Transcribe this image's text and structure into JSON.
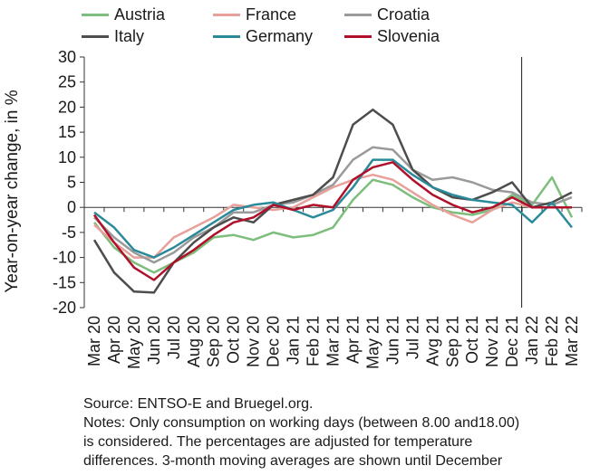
{
  "chart_data": {
    "type": "line",
    "ylabel": "Year-on-year change, in %",
    "ylim": [
      -20,
      30
    ],
    "yticks": [
      -20,
      -15,
      -10,
      -5,
      0,
      5,
      10,
      15,
      20,
      25,
      30
    ],
    "categories": [
      "Mar 20",
      "Apr 20",
      "May 20",
      "Jun 20",
      "Jul 20",
      "Aug 20",
      "Sep 20",
      "Oct 20",
      "Nov 20",
      "Dec 20",
      "Jan 21",
      "Feb 21",
      "Mar 21",
      "Apr 21",
      "May 21",
      "Jun 21",
      "Jul 21",
      "Avg 21",
      "Sep 21",
      "Oct 21",
      "Nov 21",
      "Dec 21",
      "Jan 22",
      "Feb 22",
      "Mar 22"
    ],
    "vline_after": "Dec 21",
    "grid": false,
    "legend_position": "top",
    "series": [
      {
        "name": "Austria",
        "color": "#7dbe7d",
        "values": [
          -3,
          -8,
          -11,
          -13,
          -11,
          -9,
          -6,
          -5.5,
          -6.5,
          -5,
          -6,
          -5.5,
          -4,
          1.5,
          5.5,
          4.5,
          2,
          0,
          -1,
          -1.5,
          -0.5,
          2.5,
          0.5,
          6,
          -2
        ]
      },
      {
        "name": "France",
        "color": "#e8a09a",
        "values": [
          -3.5,
          -7,
          -10,
          -10,
          -6,
          -4,
          -2,
          0.5,
          0,
          -0.5,
          0,
          2,
          4,
          5.5,
          6.5,
          5.5,
          3,
          0.5,
          -1.5,
          -3,
          -0.5,
          1,
          0,
          0,
          0
        ]
      },
      {
        "name": "Croatia",
        "color": "#9a9a9a",
        "values": [
          -2,
          -6,
          -9,
          -11,
          -9,
          -6,
          -4,
          -1,
          -1,
          0.5,
          1,
          2.5,
          4.5,
          9.5,
          12,
          11.5,
          7.5,
          5.5,
          6,
          5,
          3.5,
          3,
          1,
          0.5,
          2
        ]
      },
      {
        "name": "Italy",
        "color": "#4d4d4d",
        "values": [
          -6.5,
          -13,
          -16.8,
          -17,
          -11,
          -7,
          -4,
          -2,
          -3,
          0.5,
          1.5,
          2.5,
          6,
          16.5,
          19.5,
          16.5,
          7.5,
          4,
          2,
          1.5,
          3,
          5,
          0,
          1,
          3
        ]
      },
      {
        "name": "Germany",
        "color": "#2b8a9a",
        "values": [
          -1,
          -4,
          -8.5,
          -10,
          -8,
          -5.5,
          -3,
          -0.5,
          0.5,
          1,
          -0.5,
          -2,
          -0.5,
          4,
          9.5,
          9.5,
          6.5,
          4,
          2.5,
          1.5,
          1,
          0.5,
          -3,
          1,
          -4
        ]
      },
      {
        "name": "Slovenia",
        "color": "#b0102a",
        "values": [
          -1.5,
          -7,
          -12,
          -14.5,
          -11,
          -8.5,
          -5.5,
          -3,
          -2,
          0.5,
          -0.5,
          0.5,
          0,
          5.5,
          8,
          9,
          5.5,
          2.5,
          0.5,
          -1,
          0,
          2,
          0,
          0,
          0
        ]
      }
    ]
  },
  "notes": {
    "line1": "Source: ENTSO-E and Bruegel.org.",
    "line2": "Notes: Only consumption on working days (between 8.00 and18.00)",
    "line3": "is considered. The percentages are adjusted for temperature",
    "line4": "differences. 3-month moving averages are shown until December"
  }
}
